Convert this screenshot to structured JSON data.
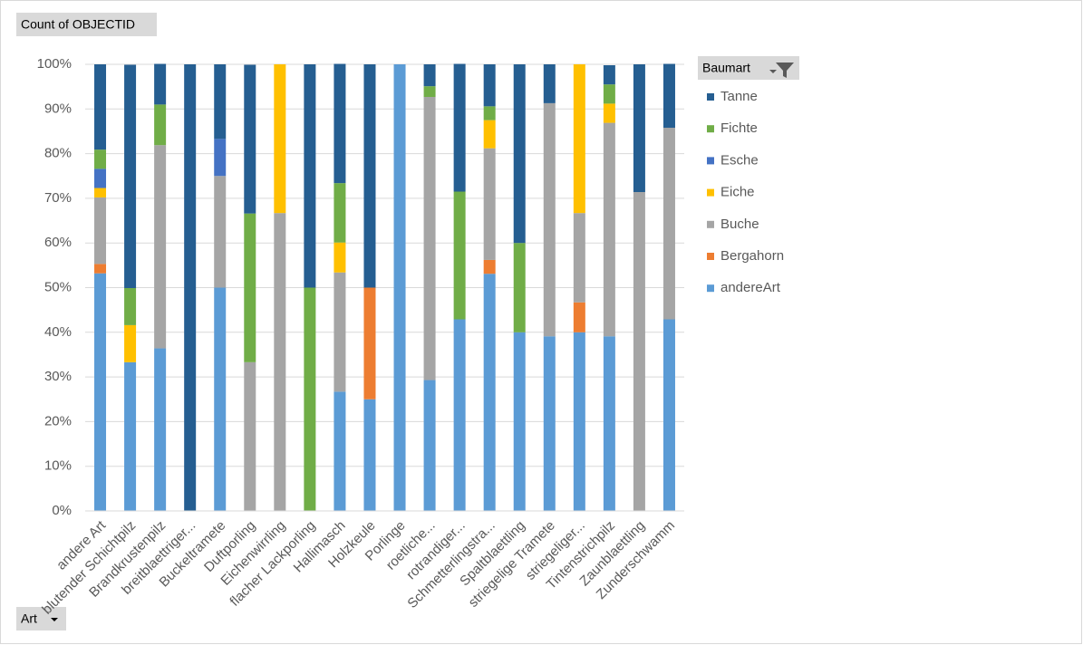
{
  "chart_data": {
    "type": "bar",
    "stacked": true,
    "field_button": "Count of OBJECTID",
    "legend_title": "Baumart",
    "axis_button": "Art",
    "categories": [
      "andere Art",
      "blutender Schichtpilz",
      "Brandkrustenpilz",
      "breitblaettriger...",
      "Buckeltramete",
      "Duftporling",
      "Eichenwirrling",
      "flacher Lackporling",
      "Hallimasch",
      "Holzkeule",
      "Porlinge",
      "roetliche...",
      "rotrandiger...",
      "Schmetterlingstra...",
      "Spaltblaettling",
      "striegelige Tramete",
      "striegeliger...",
      "Tintenstrichpilz",
      "Zaunblaettling",
      "Zunderschwamm"
    ],
    "series": [
      {
        "name": "andereArt",
        "color": "#5b9bd5",
        "values": [
          53.2,
          33.3,
          36.4,
          0,
          50,
          0,
          0,
          0,
          26.7,
          25,
          100,
          29.3,
          42.9,
          53.1,
          40,
          39.1,
          40,
          39.1,
          0,
          42.9
        ]
      },
      {
        "name": "Bergahorn",
        "color": "#ed7d31",
        "values": [
          2.1,
          0,
          0,
          0,
          0,
          0,
          0,
          0,
          0,
          25,
          0,
          0,
          0,
          3.1,
          0,
          0,
          6.7,
          0,
          0,
          0
        ]
      },
      {
        "name": "Buche",
        "color": "#a5a5a5",
        "values": [
          14.9,
          0,
          45.5,
          0,
          25,
          33.3,
          66.7,
          0,
          26.7,
          0,
          0,
          63.4,
          0,
          25,
          0,
          52.2,
          20,
          47.8,
          71.4,
          42.9
        ]
      },
      {
        "name": "Eiche",
        "color": "#ffc000",
        "values": [
          2.1,
          8.3,
          0,
          0,
          0,
          0,
          33.3,
          0,
          6.7,
          0,
          0,
          0,
          0,
          6.3,
          0,
          0,
          33.3,
          4.3,
          0,
          0
        ]
      },
      {
        "name": "Esche",
        "color": "#4472c4",
        "values": [
          4.3,
          0,
          0,
          0,
          8.3,
          0,
          0,
          0,
          0,
          0,
          0,
          0,
          0,
          0,
          0,
          0,
          0,
          0,
          0,
          0
        ]
      },
      {
        "name": "Fichte",
        "color": "#70ad47",
        "values": [
          4.3,
          8.3,
          9.1,
          0,
          0,
          33.3,
          0,
          50,
          13.3,
          0,
          0,
          2.4,
          28.6,
          3.1,
          20,
          0,
          0,
          4.3,
          0,
          0
        ]
      },
      {
        "name": "Tanne",
        "color": "#255e91",
        "values": [
          19.1,
          50,
          9.1,
          100,
          16.7,
          33.3,
          0,
          50,
          26.7,
          50,
          0,
          4.9,
          28.6,
          9.4,
          40,
          8.7,
          0,
          4.3,
          28.6,
          14.3
        ]
      }
    ],
    "ylim": [
      0,
      100
    ],
    "yticks": [
      {
        "value": 0,
        "label": "0%"
      },
      {
        "value": 10,
        "label": "10%"
      },
      {
        "value": 20,
        "label": "20%"
      },
      {
        "value": 30,
        "label": "30%"
      },
      {
        "value": 40,
        "label": "40%"
      },
      {
        "value": 50,
        "label": "50%"
      },
      {
        "value": 60,
        "label": "60%"
      },
      {
        "value": 70,
        "label": "70%"
      },
      {
        "value": 80,
        "label": "80%"
      },
      {
        "value": 90,
        "label": "90%"
      },
      {
        "value": 100,
        "label": "100%"
      }
    ],
    "grid": true
  }
}
